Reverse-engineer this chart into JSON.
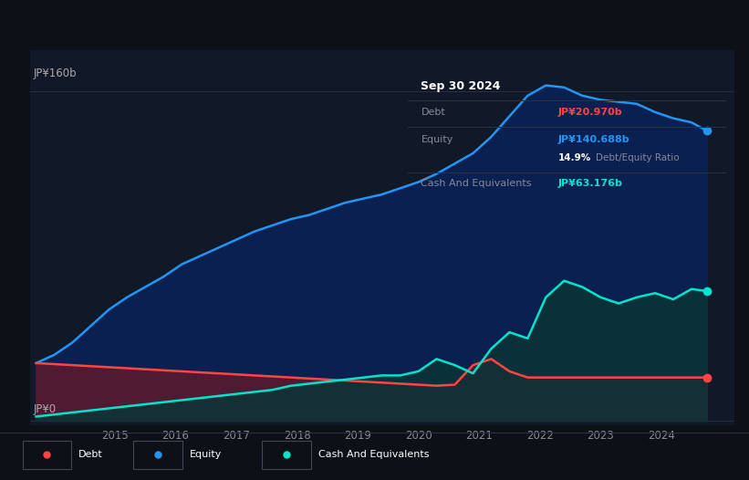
{
  "background_color": "#0d1117",
  "plot_bg_color": "#111827",
  "ylabel_top": "JP¥160b",
  "ylabel_bottom": "JP¥0",
  "x_ticks": [
    2015,
    2016,
    2017,
    2018,
    2019,
    2020,
    2021,
    2022,
    2023,
    2024
  ],
  "x_range": [
    2013.6,
    2025.2
  ],
  "y_range": [
    -2,
    180
  ],
  "debt_color": "#ff4444",
  "equity_color": "#2196f3",
  "cash_color": "#00e5cc",
  "debt_fill_color": "#5a1a30",
  "equity_fill_color": "#0a2050",
  "cash_fill_color": "#0a3535",
  "grid_color": "#252f40",
  "debt_label": "Debt",
  "equity_label": "Equity",
  "cash_label": "Cash And Equivalents",
  "tooltip_date": "Sep 30 2024",
  "tooltip_debt_val": "JP¥20.970b",
  "tooltip_equity_val": "JP¥140.688b",
  "tooltip_ratio": "14.9%",
  "tooltip_ratio_label": "Debt/Equity Ratio",
  "tooltip_cash_val": "JP¥63.176b",
  "debt_x": [
    2013.7,
    2014.0,
    2014.3,
    2014.6,
    2014.9,
    2015.2,
    2015.5,
    2015.8,
    2016.1,
    2016.4,
    2016.7,
    2017.0,
    2017.3,
    2017.6,
    2017.9,
    2018.2,
    2018.5,
    2018.8,
    2019.1,
    2019.4,
    2019.7,
    2020.0,
    2020.3,
    2020.6,
    2020.9,
    2021.2,
    2021.5,
    2021.8,
    2022.1,
    2022.4,
    2022.7,
    2023.0,
    2023.3,
    2023.6,
    2023.9,
    2024.2,
    2024.5,
    2024.75
  ],
  "debt_y": [
    28,
    27.5,
    27,
    26.5,
    26,
    25.5,
    25,
    24.5,
    24,
    23.5,
    23,
    22.5,
    22,
    21.5,
    21,
    20.5,
    20,
    19.5,
    19,
    18.5,
    18,
    17.5,
    17,
    17.5,
    27,
    30,
    24,
    21,
    21,
    21,
    21,
    21,
    21,
    21,
    21,
    21,
    21,
    21
  ],
  "equity_x": [
    2013.7,
    2014.0,
    2014.3,
    2014.6,
    2014.9,
    2015.2,
    2015.5,
    2015.8,
    2016.1,
    2016.4,
    2016.7,
    2017.0,
    2017.3,
    2017.6,
    2017.9,
    2018.2,
    2018.5,
    2018.8,
    2019.1,
    2019.4,
    2019.7,
    2020.0,
    2020.3,
    2020.6,
    2020.9,
    2021.2,
    2021.5,
    2021.8,
    2022.1,
    2022.4,
    2022.7,
    2023.0,
    2023.3,
    2023.6,
    2023.9,
    2024.2,
    2024.5,
    2024.75
  ],
  "equity_y": [
    28,
    32,
    38,
    46,
    54,
    60,
    65,
    70,
    76,
    80,
    84,
    88,
    92,
    95,
    98,
    100,
    103,
    106,
    108,
    110,
    113,
    116,
    120,
    125,
    130,
    138,
    148,
    158,
    163,
    162,
    158,
    156,
    155,
    154,
    150,
    147,
    145,
    141
  ],
  "cash_x": [
    2013.7,
    2014.0,
    2014.3,
    2014.6,
    2014.9,
    2015.2,
    2015.5,
    2015.8,
    2016.1,
    2016.4,
    2016.7,
    2017.0,
    2017.3,
    2017.6,
    2017.9,
    2018.2,
    2018.5,
    2018.8,
    2019.1,
    2019.4,
    2019.7,
    2020.0,
    2020.3,
    2020.6,
    2020.9,
    2021.2,
    2021.5,
    2021.8,
    2022.1,
    2022.4,
    2022.7,
    2023.0,
    2023.3,
    2023.6,
    2023.9,
    2024.2,
    2024.5,
    2024.75
  ],
  "cash_y": [
    2,
    3,
    4,
    5,
    6,
    7,
    8,
    9,
    10,
    11,
    12,
    13,
    14,
    15,
    17,
    18,
    19,
    20,
    21,
    22,
    22,
    24,
    30,
    27,
    23,
    35,
    43,
    40,
    60,
    68,
    65,
    60,
    57,
    60,
    62,
    59,
    64,
    63
  ]
}
